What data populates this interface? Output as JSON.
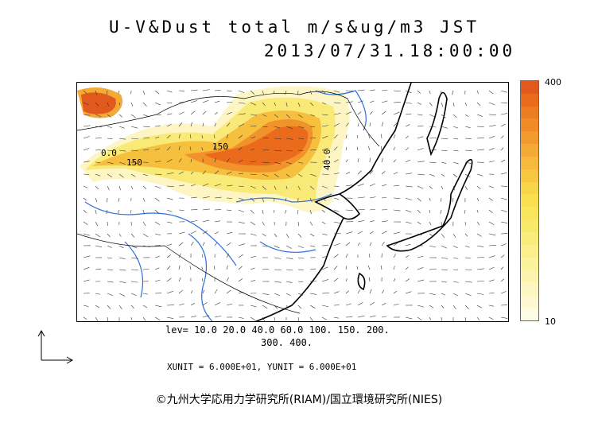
{
  "title": {
    "line1": "U-V&Dust total m/s&ug/m3 JST",
    "line2": "2013/07/31.18:00:00"
  },
  "colorbar": {
    "max_label": "400",
    "min_label": "10",
    "colors": [
      "#e2591d",
      "#ea6b1b",
      "#ee7c20",
      "#f18b27",
      "#f29a2d",
      "#f4aa34",
      "#f6b93b",
      "#f7c741",
      "#f8d548",
      "#f9e050",
      "#f9e65c",
      "#f9e96b",
      "#f9ec7b",
      "#faef8b",
      "#fbf29c",
      "#fcf4ae",
      "#fcf6c0",
      "#fdf8d2",
      "#fefbe4"
    ]
  },
  "contour_labels": {
    "a": "150",
    "b": "0.0",
    "c": "40.0",
    "d": "150"
  },
  "levels": {
    "line1": "lev= 10.0 20.0 40.0 60.0 100. 150. 200.",
    "line2": "300. 400."
  },
  "units": "XUNIT = 6.000E+01, YUNIT = 6.000E+01",
  "credit": "©九州大学応用力学研究所(RIAM)/国立環境研究所(NIES)"
}
